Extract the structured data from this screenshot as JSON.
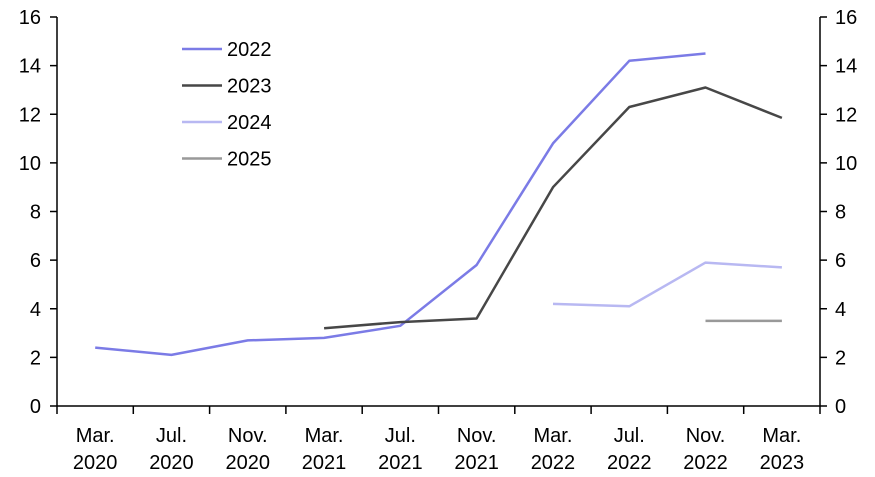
{
  "chart_data": {
    "type": "line",
    "title": "",
    "xlabel": "",
    "ylabel": "",
    "categories": [
      [
        "Mar.",
        "2020"
      ],
      [
        "Jul.",
        "2020"
      ],
      [
        "Nov.",
        "2020"
      ],
      [
        "Mar.",
        "2021"
      ],
      [
        "Jul.",
        "2021"
      ],
      [
        "Nov.",
        "2021"
      ],
      [
        "Mar.",
        "2022"
      ],
      [
        "Jul.",
        "2022"
      ],
      [
        "Nov.",
        "2022"
      ],
      [
        "Mar.",
        "2023"
      ]
    ],
    "ylim": [
      0,
      16
    ],
    "yticks": [
      0,
      2,
      4,
      6,
      8,
      10,
      12,
      14,
      16
    ],
    "y2lim": [
      0,
      16
    ],
    "y2ticks": [
      0,
      2,
      4,
      6,
      8,
      10,
      12,
      14,
      16
    ],
    "grid": false,
    "legend_position": "top-left",
    "series": [
      {
        "name": "2022",
        "color": "#7b7be6",
        "values": [
          2.4,
          2.1,
          2.7,
          2.8,
          3.3,
          5.8,
          10.8,
          14.2,
          14.5,
          null
        ]
      },
      {
        "name": "2023",
        "color": "#474747",
        "values": [
          null,
          null,
          null,
          3.2,
          3.45,
          3.6,
          9.0,
          12.3,
          13.1,
          11.85
        ]
      },
      {
        "name": "2024",
        "color": "#b8b8f2",
        "values": [
          null,
          null,
          null,
          null,
          null,
          null,
          4.2,
          4.1,
          5.9,
          5.7
        ]
      },
      {
        "name": "2025",
        "color": "#999999",
        "values": [
          null,
          null,
          null,
          null,
          null,
          null,
          null,
          null,
          3.5,
          3.5
        ]
      }
    ]
  }
}
